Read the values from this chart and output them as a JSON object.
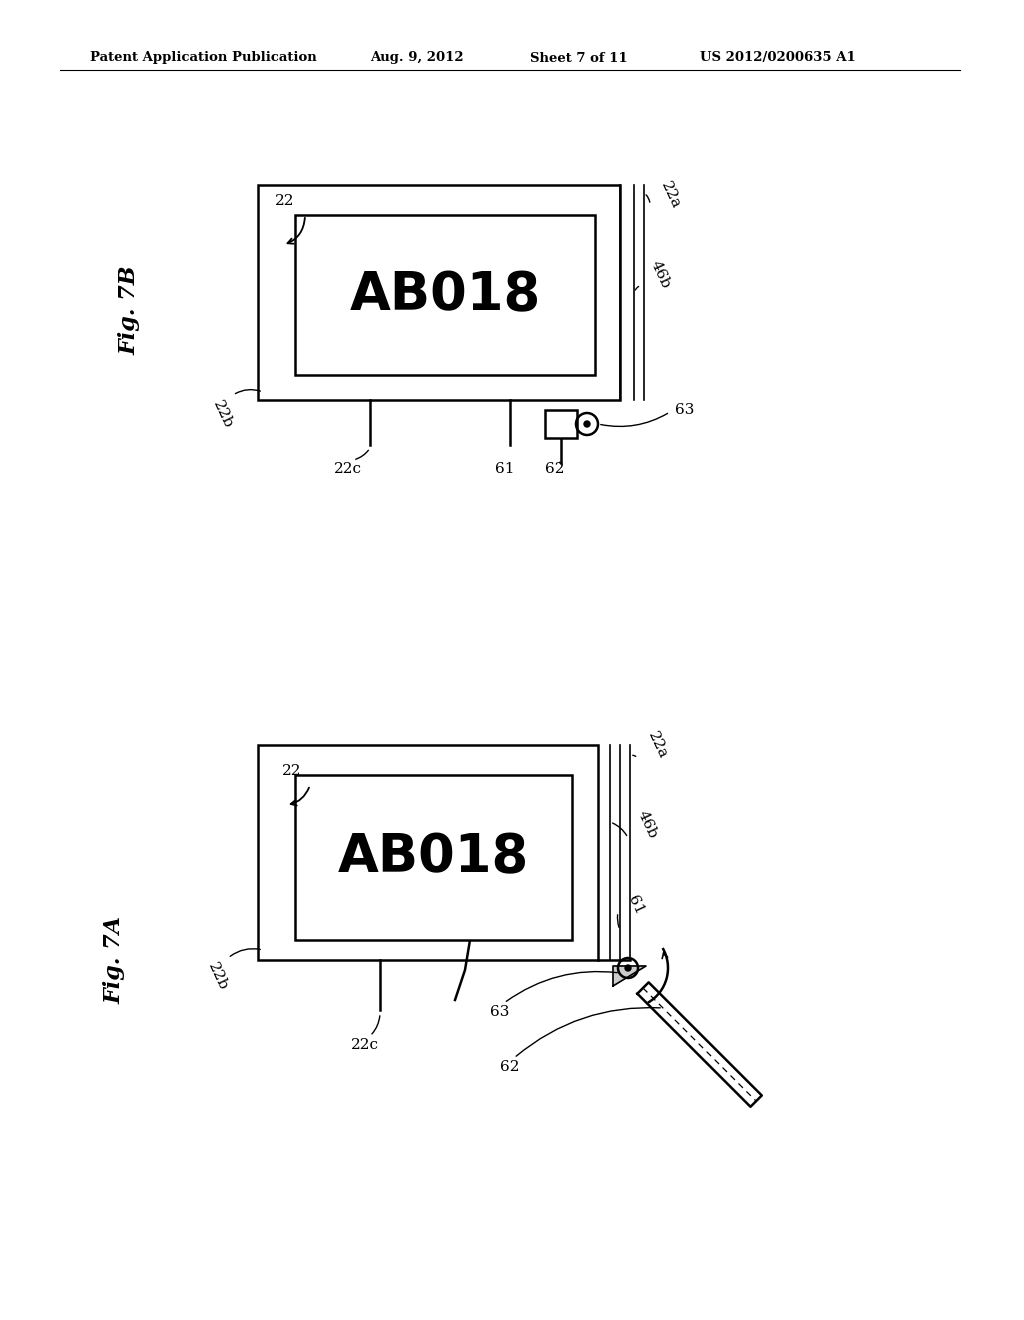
{
  "bg_color": "#ffffff",
  "header_text": "Patent Application Publication",
  "header_date": "Aug. 9, 2012",
  "header_sheet": "Sheet 7 of 11",
  "header_patent": "US 2012/0200635 A1",
  "fig7B_label": "Fig. 7B",
  "fig7A_label": "Fig. 7A",
  "ab_text": "AB018"
}
